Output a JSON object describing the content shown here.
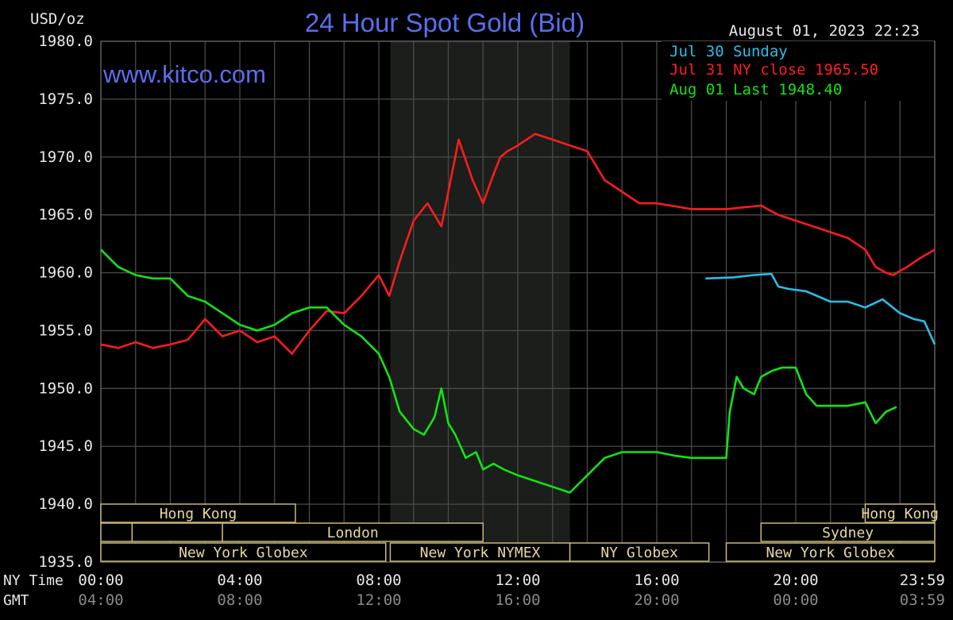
{
  "chart_data": {
    "type": "line",
    "title": "24 Hour Spot Gold (Bid)",
    "ylabel": "USD/oz",
    "watermark": "www.kitco.com",
    "timestamp": "August 01, 2023 22:23",
    "ylim": [
      1935,
      1980
    ],
    "y_ticks": [
      "1980.0",
      "1975.0",
      "1970.0",
      "1965.0",
      "1960.0",
      "1955.0",
      "1950.0",
      "1945.0",
      "1940.0",
      "1935.0"
    ],
    "x_axis_rows": [
      {
        "label": "NY Time",
        "ticks": [
          "00:00",
          "04:00",
          "08:00",
          "12:00",
          "16:00",
          "20:00",
          "23:59"
        ]
      },
      {
        "label": "GMT",
        "ticks": [
          "04:00",
          "08:00",
          "12:00",
          "16:00",
          "20:00",
          "00:00",
          "03:59"
        ]
      }
    ],
    "x_tick_hours": [
      0,
      4,
      8,
      12,
      16,
      20,
      24
    ],
    "shaded_range_hours": [
      8.33,
      13.5
    ],
    "grid": true,
    "legend_position": "top-right",
    "series": [
      {
        "name": "Jul 30 Sunday",
        "color": "#2bbde8",
        "x_hours": [
          17.4,
          18.2,
          18.8,
          19.3,
          19.5,
          19.8,
          20.3,
          21.0,
          21.5,
          22.0,
          22.5,
          23.0,
          23.4,
          23.7,
          24.0
        ],
        "values": [
          1959.5,
          1959.6,
          1959.8,
          1959.9,
          1958.8,
          1958.6,
          1958.4,
          1957.5,
          1957.5,
          1957.0,
          1957.7,
          1956.5,
          1956.0,
          1955.8,
          1953.8
        ]
      },
      {
        "name": "Jul 31 NY close 1965.50",
        "color": "#ff1c1c",
        "x_hours": [
          0.0,
          0.5,
          1.0,
          1.5,
          2.0,
          2.5,
          3.0,
          3.5,
          4.0,
          4.5,
          5.0,
          5.5,
          6.0,
          6.5,
          7.0,
          7.5,
          8.0,
          8.3,
          8.6,
          9.0,
          9.4,
          9.8,
          10.0,
          10.3,
          10.7,
          11.0,
          11.3,
          11.5,
          11.7,
          12.0,
          12.5,
          13.0,
          13.5,
          14.0,
          14.5,
          15.0,
          15.5,
          16.0,
          17.0,
          18.0,
          19.0,
          19.5,
          20.0,
          20.5,
          21.0,
          21.5,
          22.0,
          22.3,
          22.6,
          22.8,
          23.2,
          23.6,
          24.0
        ],
        "values": [
          1953.8,
          1953.5,
          1954.0,
          1953.5,
          1953.8,
          1954.2,
          1956.0,
          1954.5,
          1955.0,
          1954.0,
          1954.5,
          1953.0,
          1955.0,
          1956.7,
          1956.5,
          1958.0,
          1959.8,
          1958.0,
          1961.0,
          1964.5,
          1966.0,
          1964.0,
          1967.0,
          1971.5,
          1968.0,
          1966.0,
          1968.5,
          1970.0,
          1970.5,
          1971.0,
          1972.0,
          1971.5,
          1971.0,
          1970.5,
          1968.0,
          1967.0,
          1966.0,
          1966.0,
          1965.5,
          1965.5,
          1965.8,
          1965.0,
          1964.5,
          1964.0,
          1963.5,
          1963.0,
          1962.0,
          1960.5,
          1960.0,
          1959.8,
          1960.5,
          1961.3,
          1962.0
        ]
      },
      {
        "name": "Aug 01 Last 1948.40",
        "color": "#12e412",
        "x_hours": [
          0.0,
          0.5,
          1.0,
          1.5,
          2.0,
          2.5,
          3.0,
          3.5,
          4.0,
          4.5,
          5.0,
          5.5,
          6.0,
          6.5,
          7.0,
          7.5,
          8.0,
          8.3,
          8.6,
          9.0,
          9.3,
          9.6,
          9.8,
          10.0,
          10.2,
          10.5,
          10.8,
          11.0,
          11.3,
          11.6,
          12.0,
          12.5,
          13.0,
          13.5,
          14.0,
          14.5,
          15.0,
          15.5,
          16.0,
          16.5,
          17.0,
          17.5,
          18.0,
          18.1,
          18.3,
          18.5,
          18.8,
          19.0,
          19.3,
          19.6,
          20.0,
          20.3,
          20.6,
          21.0,
          21.5,
          22.0,
          22.3,
          22.6,
          22.9
        ],
        "values": [
          1962.0,
          1960.5,
          1959.8,
          1959.5,
          1959.5,
          1958.0,
          1957.5,
          1956.5,
          1955.5,
          1955.0,
          1955.5,
          1956.5,
          1957.0,
          1957.0,
          1955.5,
          1954.5,
          1953.0,
          1951.0,
          1948.0,
          1946.5,
          1946.0,
          1947.5,
          1950.0,
          1947.0,
          1946.0,
          1944.0,
          1944.5,
          1943.0,
          1943.5,
          1943.0,
          1942.5,
          1942.0,
          1941.5,
          1941.0,
          1942.5,
          1944.0,
          1944.5,
          1944.5,
          1944.5,
          1944.2,
          1944.0,
          1944.0,
          1944.0,
          1948.0,
          1951.0,
          1950.0,
          1949.5,
          1951.0,
          1951.5,
          1951.8,
          1951.8,
          1949.5,
          1948.5,
          1948.5,
          1948.5,
          1948.8,
          1947.0,
          1948.0,
          1948.4
        ]
      }
    ]
  },
  "sessions": {
    "row1": [
      {
        "label": "Hong Kong",
        "start": 0,
        "end": 5.6
      },
      {
        "label": "Hong Kong",
        "start": 22.0,
        "end": 24.0
      }
    ],
    "row2": [
      {
        "label": "",
        "start": 0,
        "end": 0.9
      },
      {
        "label": "",
        "start": 0.9,
        "end": 3.5
      },
      {
        "label": "London",
        "start": 3.5,
        "end": 11.0
      },
      {
        "label": "Sydney",
        "start": 19.0,
        "end": 24.0
      }
    ],
    "row3": [
      {
        "label": "New York Globex",
        "start": 0,
        "end": 8.2
      },
      {
        "label": "New York NYMEX",
        "start": 8.33,
        "end": 13.5
      },
      {
        "label": "NY Globex",
        "start": 13.5,
        "end": 17.5
      },
      {
        "label": "New York Globex",
        "start": 18.0,
        "end": 24.0
      }
    ]
  }
}
